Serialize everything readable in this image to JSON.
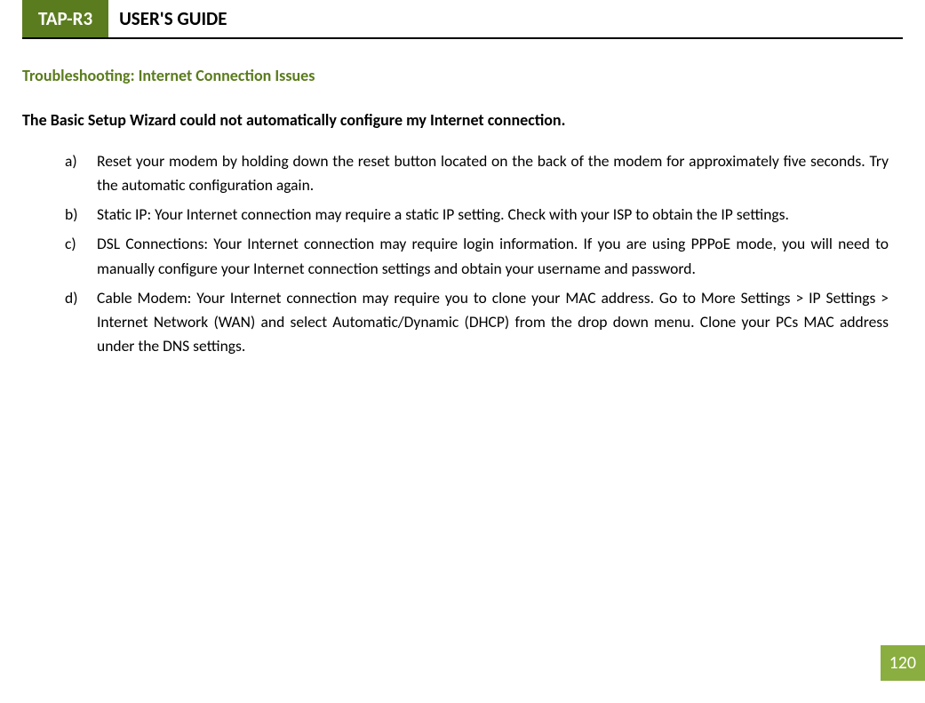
{
  "header": {
    "badge": "TAP-R3",
    "title": "USER'S GUIDE"
  },
  "section_title": "Troubleshooting: Internet Connection Issues",
  "subsection_title": "The Basic Setup Wizard could not automatically configure my Internet connection.",
  "items": [
    {
      "marker": "a)",
      "text": "Reset your modem by holding down the reset button located on the back of the modem for approximately five seconds. Try the automatic configuration again."
    },
    {
      "marker": "b)",
      "text": "Static IP: Your Internet connection may require a static IP setting. Check with your ISP to obtain the IP settings."
    },
    {
      "marker": "c)",
      "text": "DSL Connections: Your Internet connection may require login information. If you are using PPPoE mode, you will need to manually configure your Internet connection settings and obtain your username and password."
    },
    {
      "marker": "d)",
      "text": "Cable Modem: Your Internet connection may require you to clone your MAC address. Go to More Settings > IP Settings > Internet Network (WAN) and select Automatic/Dynamic (DHCP) from the drop down menu. Clone your PCs MAC address under the DNS settings."
    }
  ],
  "page_number": "120",
  "colors": {
    "brand_green": "#5b7c1e",
    "page_badge_green": "#8aae3f",
    "text_black": "#000000",
    "background": "#ffffff"
  }
}
